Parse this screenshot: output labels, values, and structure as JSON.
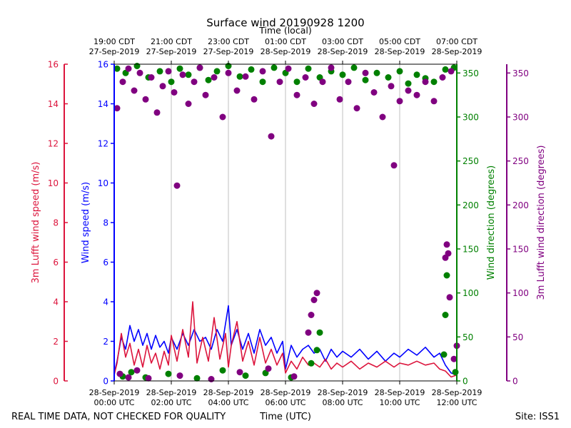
{
  "chart_data": {
    "type": "scatter",
    "title": "Surface wind 20190928 1200",
    "top_axis_label": "Time (local)",
    "xlabel": "Time (UTC)",
    "footer_left": "REAL TIME DATA, NOT CHECKED FOR QUALITY",
    "footer_right": "Site: ISS1",
    "x_range_hours": [
      0,
      12
    ],
    "bottom_ticks": [
      {
        "hour": 0,
        "line1": "28-Sep-2019",
        "line2": "00:00 UTC"
      },
      {
        "hour": 2,
        "line1": "28-Sep-2019",
        "line2": "02:00 UTC"
      },
      {
        "hour": 4,
        "line1": "28-Sep-2019",
        "line2": "04:00 UTC"
      },
      {
        "hour": 6,
        "line1": "28-Sep-2019",
        "line2": "06:00 UTC"
      },
      {
        "hour": 8,
        "line1": "28-Sep-2019",
        "line2": "08:00 UTC"
      },
      {
        "hour": 10,
        "line1": "28-Sep-2019",
        "line2": "10:00 UTC"
      },
      {
        "hour": 12,
        "line1": "28-Sep-2019",
        "line2": "12:00 UTC"
      }
    ],
    "top_ticks": [
      {
        "hour": 0,
        "line1": "19:00 CDT",
        "line2": "27-Sep-2019"
      },
      {
        "hour": 2,
        "line1": "21:00 CDT",
        "line2": "27-Sep-2019"
      },
      {
        "hour": 4,
        "line1": "23:00 CDT",
        "line2": "27-Sep-2019"
      },
      {
        "hour": 6,
        "line1": "01:00 CDT",
        "line2": "28-Sep-2019"
      },
      {
        "hour": 8,
        "line1": "03:00 CDT",
        "line2": "28-Sep-2019"
      },
      {
        "hour": 10,
        "line1": "05:00 CDT",
        "line2": "28-Sep-2019"
      },
      {
        "hour": 12,
        "line1": "07:00 CDT",
        "line2": "28-Sep-2019"
      }
    ],
    "axes": {
      "lufft_speed": {
        "label": "3m Lufft wind speed (m/s)",
        "ylim": [
          0,
          16
        ],
        "ticks": [
          0,
          2,
          4,
          6,
          8,
          10,
          12,
          14,
          16
        ],
        "color": "#dc143c"
      },
      "speed": {
        "label": "Wind speed (m/s)",
        "ylim": [
          0,
          16
        ],
        "ticks": [
          0,
          2,
          4,
          6,
          8,
          10,
          12,
          14,
          16
        ],
        "color": "#0000ff"
      },
      "direction": {
        "label": "Wind direction (degrees)",
        "ylim": [
          0,
          360
        ],
        "ticks": [
          0,
          50,
          100,
          150,
          200,
          250,
          300,
          350
        ],
        "color": "#008000"
      },
      "lufft_direction": {
        "label": "3m Lufft wind direction (degrees)",
        "ylim": [
          0,
          360
        ],
        "ticks": [
          0,
          50,
          100,
          150,
          200,
          250,
          300,
          350
        ],
        "color": "#800080"
      }
    },
    "series": [
      {
        "name": "Wind speed",
        "axis": "speed",
        "style": "line",
        "color": "#0000ff",
        "points": [
          [
            0.0,
            0.4
          ],
          [
            0.1,
            1.0
          ],
          [
            0.25,
            2.2
          ],
          [
            0.4,
            1.6
          ],
          [
            0.55,
            2.8
          ],
          [
            0.7,
            2.0
          ],
          [
            0.85,
            2.6
          ],
          [
            1.0,
            1.8
          ],
          [
            1.15,
            2.4
          ],
          [
            1.3,
            1.6
          ],
          [
            1.45,
            2.3
          ],
          [
            1.6,
            1.7
          ],
          [
            1.75,
            2.0
          ],
          [
            1.9,
            1.4
          ],
          [
            2.0,
            2.2
          ],
          [
            2.2,
            1.6
          ],
          [
            2.4,
            2.4
          ],
          [
            2.6,
            1.8
          ],
          [
            2.8,
            2.6
          ],
          [
            3.0,
            2.0
          ],
          [
            3.2,
            2.2
          ],
          [
            3.4,
            1.6
          ],
          [
            3.6,
            2.6
          ],
          [
            3.8,
            2.0
          ],
          [
            4.0,
            3.8
          ],
          [
            4.1,
            1.8
          ],
          [
            4.3,
            2.6
          ],
          [
            4.5,
            1.6
          ],
          [
            4.7,
            2.4
          ],
          [
            4.9,
            1.4
          ],
          [
            5.1,
            2.6
          ],
          [
            5.3,
            1.8
          ],
          [
            5.5,
            2.2
          ],
          [
            5.7,
            1.4
          ],
          [
            5.9,
            2.0
          ],
          [
            6.0,
            0.6
          ],
          [
            6.2,
            1.8
          ],
          [
            6.4,
            1.2
          ],
          [
            6.6,
            1.6
          ],
          [
            6.8,
            1.8
          ],
          [
            7.0,
            1.4
          ],
          [
            7.2,
            1.6
          ],
          [
            7.4,
            1.0
          ],
          [
            7.6,
            1.6
          ],
          [
            7.8,
            1.2
          ],
          [
            8.0,
            1.5
          ],
          [
            8.3,
            1.2
          ],
          [
            8.6,
            1.6
          ],
          [
            8.9,
            1.1
          ],
          [
            9.2,
            1.5
          ],
          [
            9.5,
            1.0
          ],
          [
            9.8,
            1.4
          ],
          [
            10.0,
            1.2
          ],
          [
            10.3,
            1.6
          ],
          [
            10.6,
            1.3
          ],
          [
            10.9,
            1.7
          ],
          [
            11.2,
            1.2
          ],
          [
            11.4,
            1.4
          ],
          [
            11.6,
            0.8
          ],
          [
            11.8,
            0.4
          ],
          [
            12.0,
            0.3
          ]
        ]
      },
      {
        "name": "3m Lufft wind speed",
        "axis": "lufft_speed",
        "style": "line",
        "color": "#dc143c",
        "points": [
          [
            0.0,
            0.3
          ],
          [
            0.1,
            0.9
          ],
          [
            0.25,
            2.4
          ],
          [
            0.4,
            1.2
          ],
          [
            0.55,
            1.9
          ],
          [
            0.7,
            0.8
          ],
          [
            0.85,
            1.6
          ],
          [
            1.0,
            0.7
          ],
          [
            1.15,
            1.8
          ],
          [
            1.3,
            0.9
          ],
          [
            1.45,
            1.4
          ],
          [
            1.6,
            0.6
          ],
          [
            1.75,
            1.5
          ],
          [
            1.9,
            0.8
          ],
          [
            2.0,
            2.3
          ],
          [
            2.2,
            1.0
          ],
          [
            2.4,
            2.6
          ],
          [
            2.6,
            1.2
          ],
          [
            2.75,
            4.0
          ],
          [
            2.9,
            0.9
          ],
          [
            3.1,
            2.2
          ],
          [
            3.3,
            1.0
          ],
          [
            3.5,
            3.2
          ],
          [
            3.7,
            1.1
          ],
          [
            3.9,
            2.4
          ],
          [
            4.0,
            0.7
          ],
          [
            4.1,
            1.8
          ],
          [
            4.3,
            3.0
          ],
          [
            4.5,
            1.0
          ],
          [
            4.7,
            2.0
          ],
          [
            4.9,
            0.8
          ],
          [
            5.1,
            2.2
          ],
          [
            5.3,
            0.9
          ],
          [
            5.5,
            1.6
          ],
          [
            5.7,
            0.8
          ],
          [
            5.9,
            1.4
          ],
          [
            6.0,
            0.4
          ],
          [
            6.2,
            1.0
          ],
          [
            6.4,
            0.6
          ],
          [
            6.6,
            1.2
          ],
          [
            6.8,
            0.8
          ],
          [
            7.0,
            0.9
          ],
          [
            7.2,
            0.7
          ],
          [
            7.4,
            1.1
          ],
          [
            7.6,
            0.6
          ],
          [
            7.8,
            0.9
          ],
          [
            8.0,
            0.7
          ],
          [
            8.3,
            1.0
          ],
          [
            8.6,
            0.6
          ],
          [
            8.9,
            0.9
          ],
          [
            9.2,
            0.7
          ],
          [
            9.5,
            1.0
          ],
          [
            9.8,
            0.7
          ],
          [
            10.0,
            0.9
          ],
          [
            10.3,
            0.8
          ],
          [
            10.6,
            1.0
          ],
          [
            10.9,
            0.8
          ],
          [
            11.2,
            0.9
          ],
          [
            11.4,
            0.6
          ],
          [
            11.6,
            0.5
          ],
          [
            11.8,
            0.2
          ],
          [
            12.0,
            0.3
          ]
        ]
      },
      {
        "name": "Wind direction",
        "axis": "direction",
        "style": "scatter",
        "color": "#008000",
        "points": [
          [
            0.1,
            355
          ],
          [
            0.4,
            350
          ],
          [
            0.8,
            358
          ],
          [
            1.2,
            345
          ],
          [
            1.6,
            352
          ],
          [
            2.0,
            340
          ],
          [
            2.3,
            355
          ],
          [
            2.6,
            348
          ],
          [
            3.0,
            356
          ],
          [
            3.3,
            342
          ],
          [
            3.6,
            352
          ],
          [
            4.0,
            358
          ],
          [
            4.4,
            346
          ],
          [
            4.8,
            354
          ],
          [
            5.2,
            340
          ],
          [
            5.6,
            356
          ],
          [
            6.0,
            350
          ],
          [
            6.4,
            340
          ],
          [
            6.8,
            355
          ],
          [
            7.2,
            345
          ],
          [
            7.6,
            352
          ],
          [
            8.0,
            348
          ],
          [
            8.4,
            356
          ],
          [
            8.8,
            342
          ],
          [
            9.2,
            350
          ],
          [
            9.6,
            345
          ],
          [
            10.0,
            352
          ],
          [
            10.3,
            338
          ],
          [
            10.6,
            348
          ],
          [
            10.9,
            344
          ],
          [
            11.2,
            340
          ],
          [
            11.6,
            354
          ],
          [
            11.9,
            356
          ],
          [
            0.3,
            5
          ],
          [
            0.6,
            10
          ],
          [
            1.1,
            4
          ],
          [
            1.9,
            8
          ],
          [
            2.9,
            3
          ],
          [
            3.8,
            12
          ],
          [
            4.6,
            6
          ],
          [
            5.3,
            9
          ],
          [
            6.2,
            4
          ],
          [
            6.9,
            20
          ],
          [
            7.1,
            35
          ],
          [
            7.2,
            55
          ],
          [
            11.55,
            30
          ],
          [
            11.6,
            75
          ],
          [
            11.65,
            120
          ],
          [
            11.95,
            10
          ]
        ]
      },
      {
        "name": "3m Lufft wind direction",
        "axis": "lufft_direction",
        "style": "scatter",
        "color": "#800080",
        "points": [
          [
            0.1,
            310
          ],
          [
            0.3,
            340
          ],
          [
            0.5,
            355
          ],
          [
            0.7,
            330
          ],
          [
            0.9,
            350
          ],
          [
            1.1,
            320
          ],
          [
            1.3,
            345
          ],
          [
            1.5,
            305
          ],
          [
            1.7,
            335
          ],
          [
            1.9,
            352
          ],
          [
            2.1,
            328
          ],
          [
            2.2,
            222
          ],
          [
            2.4,
            348
          ],
          [
            2.6,
            315
          ],
          [
            2.8,
            340
          ],
          [
            3.0,
            356
          ],
          [
            3.2,
            325
          ],
          [
            3.5,
            345
          ],
          [
            3.8,
            300
          ],
          [
            4.0,
            350
          ],
          [
            4.3,
            330
          ],
          [
            4.6,
            346
          ],
          [
            4.9,
            320
          ],
          [
            5.2,
            352
          ],
          [
            5.5,
            278
          ],
          [
            5.8,
            340
          ],
          [
            6.1,
            355
          ],
          [
            6.4,
            325
          ],
          [
            6.7,
            345
          ],
          [
            7.0,
            315
          ],
          [
            7.3,
            340
          ],
          [
            7.6,
            356
          ],
          [
            7.9,
            320
          ],
          [
            8.2,
            340
          ],
          [
            8.5,
            310
          ],
          [
            8.8,
            350
          ],
          [
            9.1,
            328
          ],
          [
            9.4,
            300
          ],
          [
            9.7,
            335
          ],
          [
            9.8,
            245
          ],
          [
            10.0,
            318
          ],
          [
            10.3,
            330
          ],
          [
            10.6,
            325
          ],
          [
            10.9,
            340
          ],
          [
            11.2,
            318
          ],
          [
            11.5,
            345
          ],
          [
            11.8,
            352
          ],
          [
            0.2,
            8
          ],
          [
            0.5,
            4
          ],
          [
            0.8,
            12
          ],
          [
            1.2,
            3
          ],
          [
            2.3,
            6
          ],
          [
            3.4,
            2
          ],
          [
            4.4,
            10
          ],
          [
            5.4,
            14
          ],
          [
            6.3,
            5
          ],
          [
            6.8,
            55
          ],
          [
            6.9,
            75
          ],
          [
            7.0,
            92
          ],
          [
            7.1,
            100
          ],
          [
            11.6,
            140
          ],
          [
            11.65,
            155
          ],
          [
            11.7,
            145
          ],
          [
            11.75,
            95
          ],
          [
            11.9,
            25
          ],
          [
            12.0,
            40
          ]
        ]
      }
    ]
  }
}
